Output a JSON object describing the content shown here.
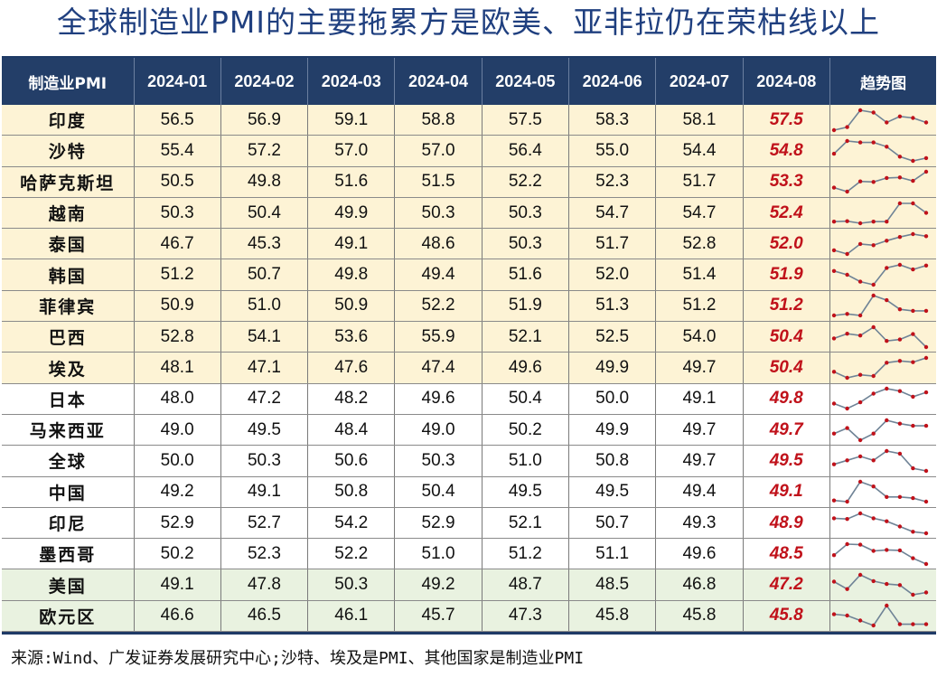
{
  "title": "全球制造业PMI的主要拖累方是欧美、亚非拉仍在荣枯线以上",
  "table": {
    "headers": {
      "country": "制造业PMI",
      "months": [
        "2024-01",
        "2024-02",
        "2024-03",
        "2024-04",
        "2024-05",
        "2024-06",
        "2024-07",
        "2024-08"
      ],
      "trend": "趋势图"
    },
    "rows": [
      {
        "name": "印度",
        "group": "yellow",
        "values": [
          "56.5",
          "56.9",
          "59.1",
          "58.8",
          "57.5",
          "58.3",
          "58.1",
          "57.5"
        ]
      },
      {
        "name": "沙特",
        "group": "yellow",
        "values": [
          "55.4",
          "57.2",
          "57.0",
          "57.0",
          "56.4",
          "55.0",
          "54.4",
          "54.8"
        ]
      },
      {
        "name": "哈萨克斯坦",
        "group": "yellow",
        "values": [
          "50.5",
          "49.8",
          "51.6",
          "51.5",
          "52.2",
          "52.3",
          "51.7",
          "53.3"
        ]
      },
      {
        "name": "越南",
        "group": "yellow",
        "values": [
          "50.3",
          "50.4",
          "49.9",
          "50.3",
          "50.3",
          "54.7",
          "54.7",
          "52.4"
        ]
      },
      {
        "name": "泰国",
        "group": "yellow",
        "values": [
          "46.7",
          "45.3",
          "49.1",
          "48.6",
          "50.3",
          "51.7",
          "52.8",
          "52.0"
        ]
      },
      {
        "name": "韩国",
        "group": "yellow",
        "values": [
          "51.2",
          "50.7",
          "49.8",
          "49.4",
          "51.6",
          "52.0",
          "51.4",
          "51.9"
        ]
      },
      {
        "name": "菲律宾",
        "group": "yellow",
        "values": [
          "50.9",
          "51.0",
          "50.9",
          "52.2",
          "51.9",
          "51.3",
          "51.2",
          "51.2"
        ]
      },
      {
        "name": "巴西",
        "group": "yellow",
        "values": [
          "52.8",
          "54.1",
          "53.6",
          "55.9",
          "52.1",
          "52.5",
          "54.0",
          "50.4"
        ]
      },
      {
        "name": "埃及",
        "group": "yellow",
        "values": [
          "48.1",
          "47.1",
          "47.6",
          "47.4",
          "49.6",
          "49.9",
          "49.7",
          "50.4"
        ]
      },
      {
        "name": "日本",
        "group": "white",
        "values": [
          "48.0",
          "47.2",
          "48.2",
          "49.6",
          "50.4",
          "50.0",
          "49.1",
          "49.8"
        ]
      },
      {
        "name": "马来西亚",
        "group": "white",
        "values": [
          "49.0",
          "49.5",
          "48.4",
          "49.0",
          "50.2",
          "49.9",
          "49.7",
          "49.7"
        ]
      },
      {
        "name": "全球",
        "group": "white",
        "values": [
          "50.0",
          "50.3",
          "50.6",
          "50.3",
          "51.0",
          "50.8",
          "49.7",
          "49.5"
        ]
      },
      {
        "name": "中国",
        "group": "white",
        "values": [
          "49.2",
          "49.1",
          "50.8",
          "50.4",
          "49.5",
          "49.5",
          "49.4",
          "49.1"
        ]
      },
      {
        "name": "印尼",
        "group": "white",
        "values": [
          "52.9",
          "52.7",
          "54.2",
          "52.9",
          "52.1",
          "50.7",
          "49.3",
          "48.9"
        ]
      },
      {
        "name": "墨西哥",
        "group": "white",
        "values": [
          "50.2",
          "52.3",
          "52.2",
          "51.0",
          "51.2",
          "51.1",
          "49.6",
          "48.5"
        ]
      },
      {
        "name": "美国",
        "group": "green",
        "values": [
          "49.1",
          "47.8",
          "50.3",
          "49.2",
          "48.7",
          "48.5",
          "46.8",
          "47.2"
        ]
      },
      {
        "name": "欧元区",
        "group": "green",
        "values": [
          "46.6",
          "46.5",
          "46.1",
          "45.7",
          "47.3",
          "45.8",
          "45.8",
          "45.8"
        ]
      }
    ]
  },
  "colors": {
    "header_bg": "#233e68",
    "latest_value": "#c0111a",
    "group_yellow": "#fdf3d5",
    "group_green": "#e9f2e0",
    "sparkline_line": "#6f8396",
    "sparkline_marker": "#c0111a"
  },
  "source": "来源:Wind、广发证券发展研究中心;沙特、埃及是PMI、其他国家是制造业PMI"
}
